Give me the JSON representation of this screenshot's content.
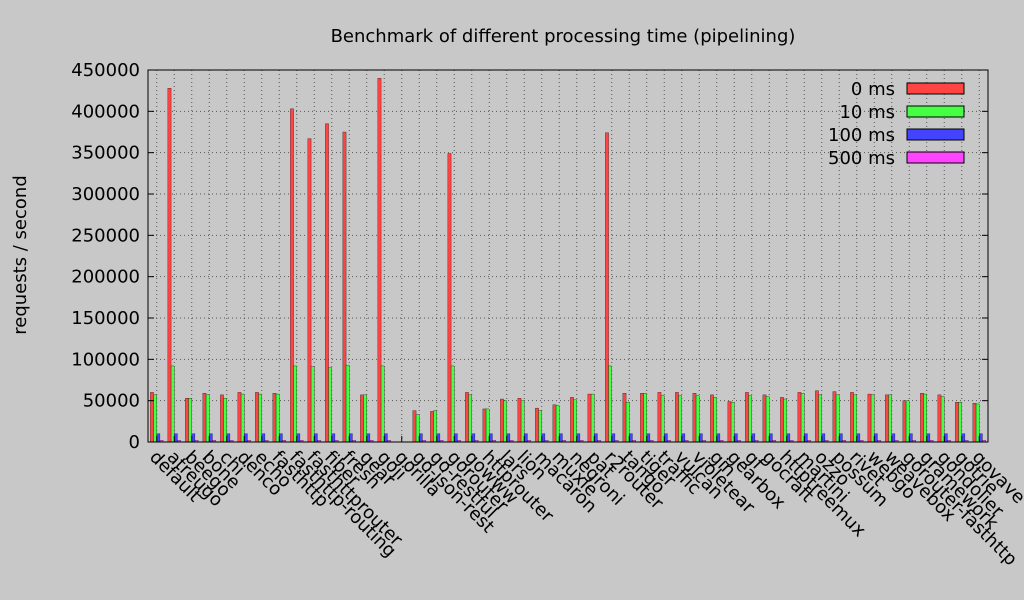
{
  "chart_data": {
    "type": "bar",
    "title": "Benchmark of different processing time (pipelining)",
    "xlabel": "",
    "ylabel": "requests / second",
    "ylim": [
      0,
      450000
    ],
    "yticks": [
      "0",
      "50000",
      "100000",
      "150000",
      "200000",
      "250000",
      "300000",
      "350000",
      "400000",
      "450000"
    ],
    "grid": true,
    "legend_position": "top-right",
    "categories": [
      "default",
      "atreugo",
      "beego",
      "bone",
      "chi",
      "denco",
      "echo",
      "fasthttp",
      "fasthttp-routing",
      "fasthttprouter",
      "fiber",
      "fresh",
      "gear",
      "goji",
      "gorilla",
      "go-json-rest",
      "go-restful",
      "gorouter",
      "gowww",
      "httprouter",
      "lars",
      "lion",
      "macaron",
      "muxie",
      "negroni",
      "pat",
      "r2router",
      "tango",
      "tiger",
      "traffic",
      "vulcan",
      "violetear",
      "gin",
      "gearbox",
      "gf",
      "gocraft",
      "httptreemux",
      "martini",
      "ozzo",
      "possum",
      "rivet",
      "webgo",
      "weavebox",
      "gorouter-fasthttp",
      "gramework",
      "gondolier",
      "gotrie",
      "govave"
    ],
    "series": [
      {
        "name": "0 ms",
        "color": "#ff4444",
        "values": [
          60000,
          428000,
          53000,
          59000,
          57000,
          60000,
          60000,
          59000,
          403000,
          367000,
          385000,
          375000,
          57000,
          440000,
          0,
          38000,
          37000,
          349000,
          60000,
          40000,
          52000,
          53000,
          41000,
          45000,
          54000,
          58000,
          374000,
          59000,
          59000,
          60000,
          60000,
          59000,
          57000,
          49000,
          60000,
          57000,
          54000,
          60000,
          62000,
          61000,
          60000,
          58000,
          57000,
          50000,
          59000,
          57000,
          48000,
          47000
        ]
      },
      {
        "name": "10 ms",
        "color": "#44ff44",
        "values": [
          57000,
          92000,
          53000,
          57000,
          53000,
          58000,
          58000,
          58000,
          92000,
          91000,
          90000,
          93000,
          57000,
          92000,
          0,
          33000,
          38000,
          92000,
          57000,
          40000,
          50000,
          50000,
          38000,
          44000,
          51000,
          58000,
          92000,
          48000,
          59000,
          56000,
          56000,
          56000,
          54000,
          48000,
          56000,
          55000,
          52000,
          59000,
          57000,
          57000,
          57000,
          57000,
          57000,
          50000,
          58000,
          55000,
          48000,
          46000
        ]
      },
      {
        "name": "100 ms",
        "color": "#4444ff",
        "values": [
          10000,
          10000,
          10000,
          10000,
          10000,
          10000,
          10000,
          10000,
          10000,
          10000,
          10000,
          10000,
          10000,
          10000,
          0,
          10000,
          10000,
          10000,
          10000,
          10000,
          10000,
          10000,
          10000,
          10000,
          10000,
          10000,
          10000,
          10000,
          10000,
          10000,
          10000,
          10000,
          10000,
          10000,
          10000,
          10000,
          10000,
          10000,
          10000,
          10000,
          10000,
          10000,
          10000,
          10000,
          10000,
          10000,
          10000,
          10000
        ]
      },
      {
        "name": "500 ms",
        "color": "#ff44ff",
        "values": [
          2000,
          2000,
          2000,
          2000,
          2000,
          2000,
          2000,
          2000,
          2000,
          2000,
          2000,
          2000,
          2000,
          2000,
          0,
          2000,
          2000,
          2000,
          2000,
          2000,
          2000,
          2000,
          2000,
          2000,
          2000,
          2000,
          2000,
          2000,
          2000,
          2000,
          2000,
          2000,
          2000,
          2000,
          2000,
          2000,
          2000,
          2000,
          2000,
          2000,
          2000,
          2000,
          2000,
          2000,
          2000,
          2000,
          2000,
          2000
        ]
      }
    ]
  }
}
